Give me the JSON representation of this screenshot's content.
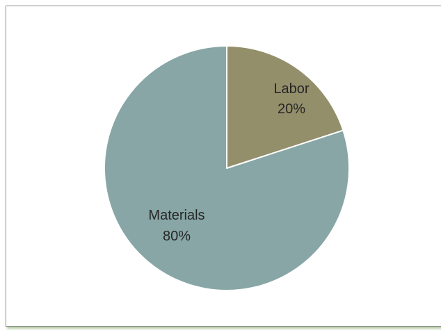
{
  "colors": {
    "materials": "#88a6a6",
    "labor": "#948f6b",
    "slice_border": "#ffffff",
    "frame_border": "#8c8c8c"
  },
  "chart_data": {
    "type": "pie",
    "title": "",
    "categories": [
      "Labor",
      "Materials"
    ],
    "values": [
      20,
      80
    ],
    "value_labels": [
      "20%",
      "80%"
    ],
    "start_angle_deg": 0,
    "direction": "clockwise",
    "legend": "none",
    "data_labels": "inside slices (category name and percentage)"
  }
}
